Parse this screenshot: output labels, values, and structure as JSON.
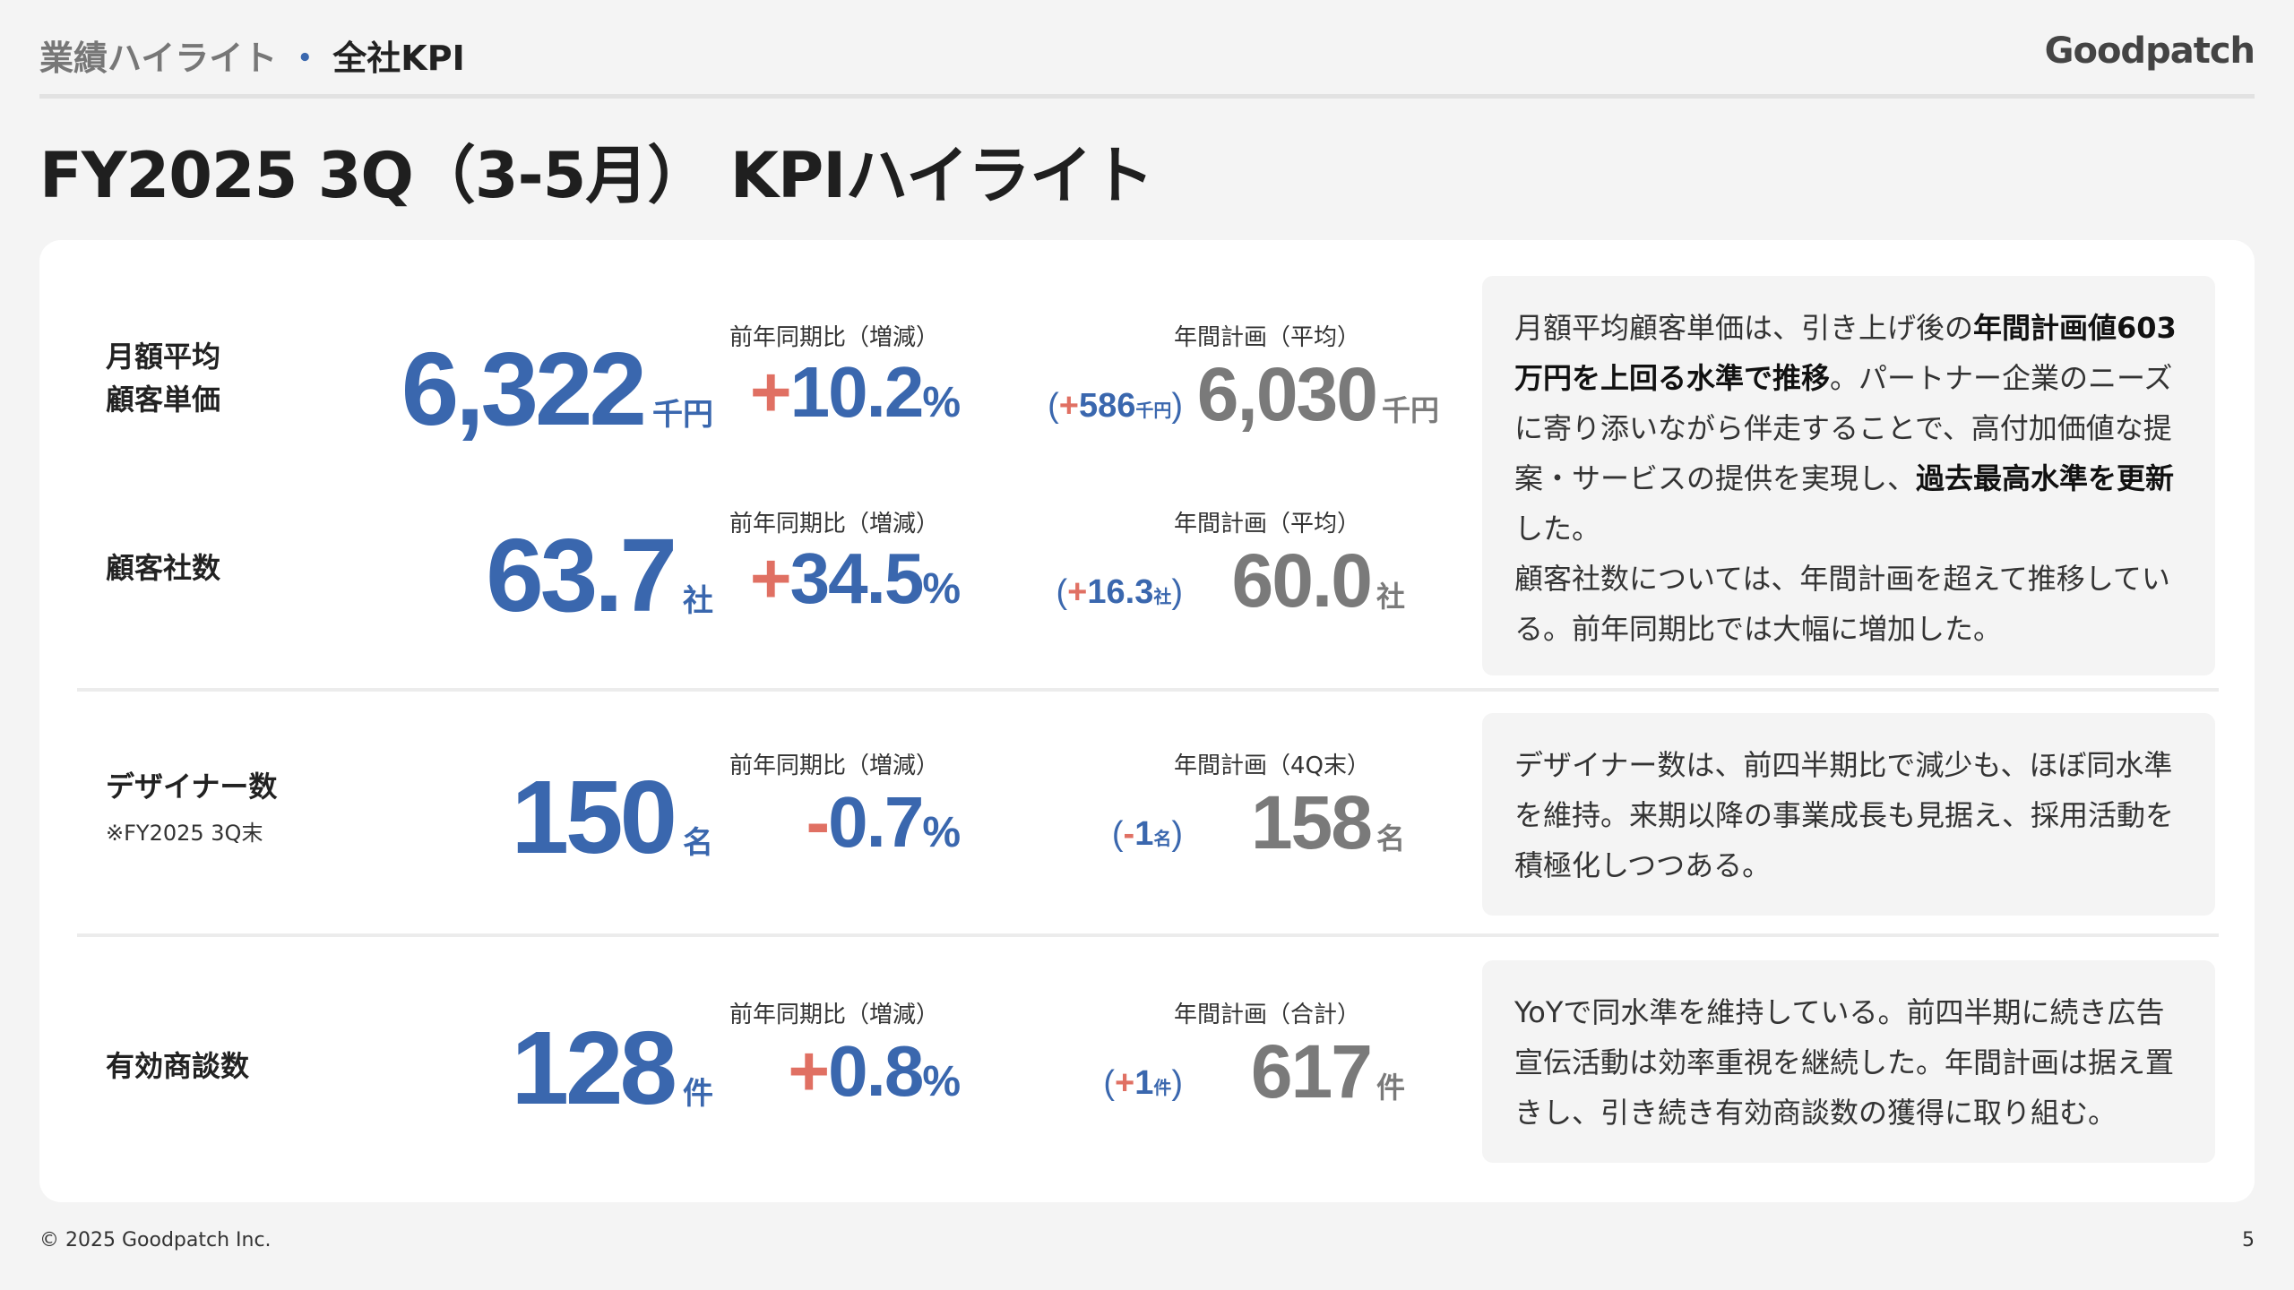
{
  "header": {
    "breadcrumb_parent": "業績ハイライト",
    "breadcrumb_dot": "・",
    "breadcrumb_current": "全社KPI",
    "logo_text": "Goodpatch"
  },
  "page_title": "FY2025 3Q（3-5月） KPIハイライト",
  "kpis": {
    "price": {
      "label_line1": "月額平均",
      "label_line2": "顧客単価",
      "value": "6,322",
      "unit": "千円",
      "yoy_caption": "前年同期比（増減）",
      "yoy_sign": "+",
      "yoy_value": "10.2",
      "yoy_pct": "%",
      "diff_sign": "+",
      "diff_value": "586",
      "diff_unit": "千円",
      "plan_caption": "年間計画（平均）",
      "plan_value": "6,030",
      "plan_unit": "千円"
    },
    "clients": {
      "label": "顧客社数",
      "value": "63.7",
      "unit": "社",
      "yoy_caption": "前年同期比（増減）",
      "yoy_sign": "+",
      "yoy_value": "34.5",
      "yoy_pct": "%",
      "diff_sign": "+",
      "diff_value": "16.3",
      "diff_unit": "社",
      "plan_caption": "年間計画（平均）",
      "plan_value": "60.0",
      "plan_unit": "社"
    },
    "designers": {
      "label": "デザイナー数",
      "sublabel": "※FY2025 3Q末",
      "value": "150",
      "unit": "名",
      "yoy_caption": "前年同期比（増減）",
      "yoy_sign": "-",
      "yoy_value": "0.7",
      "yoy_pct": "%",
      "diff_sign": "-",
      "diff_value": "1",
      "diff_unit": "名",
      "plan_caption": "年間計画（4Q末）",
      "plan_value": "158",
      "plan_unit": "名"
    },
    "meetings": {
      "label": "有効商談数",
      "value": "128",
      "unit": "件",
      "yoy_caption": "前年同期比（増減）",
      "yoy_sign": "+",
      "yoy_value": "0.8",
      "yoy_pct": "%",
      "diff_sign": "+",
      "diff_value": "1",
      "diff_unit": "件",
      "plan_caption": "年間計画（合計）",
      "plan_value": "617",
      "plan_unit": "件"
    }
  },
  "comments": {
    "c1_p1": "月額平均顧客単価は、引き上げ後の",
    "c1_b1": "年間計画値603万円を上回る水準で推移",
    "c1_p2": "。パートナー企業のニーズに寄り添いながら伴走することで、高付加価値な提案・サービスの提供を実現し、",
    "c1_b2": "過去最高水準を更新",
    "c1_p3": "した。",
    "c1_p4": "顧客社数については、年間計画を超えて推移している。前年同期比では大幅に増加した。",
    "c2": "デザイナー数は、前四半期比で減少も、ほぼ同水準を維持。来期以降の事業成長も見据え、採用活動を積極化しつつある。",
    "c3": "YoYで同水準を維持している。前四半期に続き広告宣伝活動は効率重視を継続した。年間計画は据え置きし、引き続き有効商談数の獲得に取り組む。"
  },
  "footer": {
    "copyright": "© 2025 Goodpatch Inc.",
    "page_number": "5"
  }
}
